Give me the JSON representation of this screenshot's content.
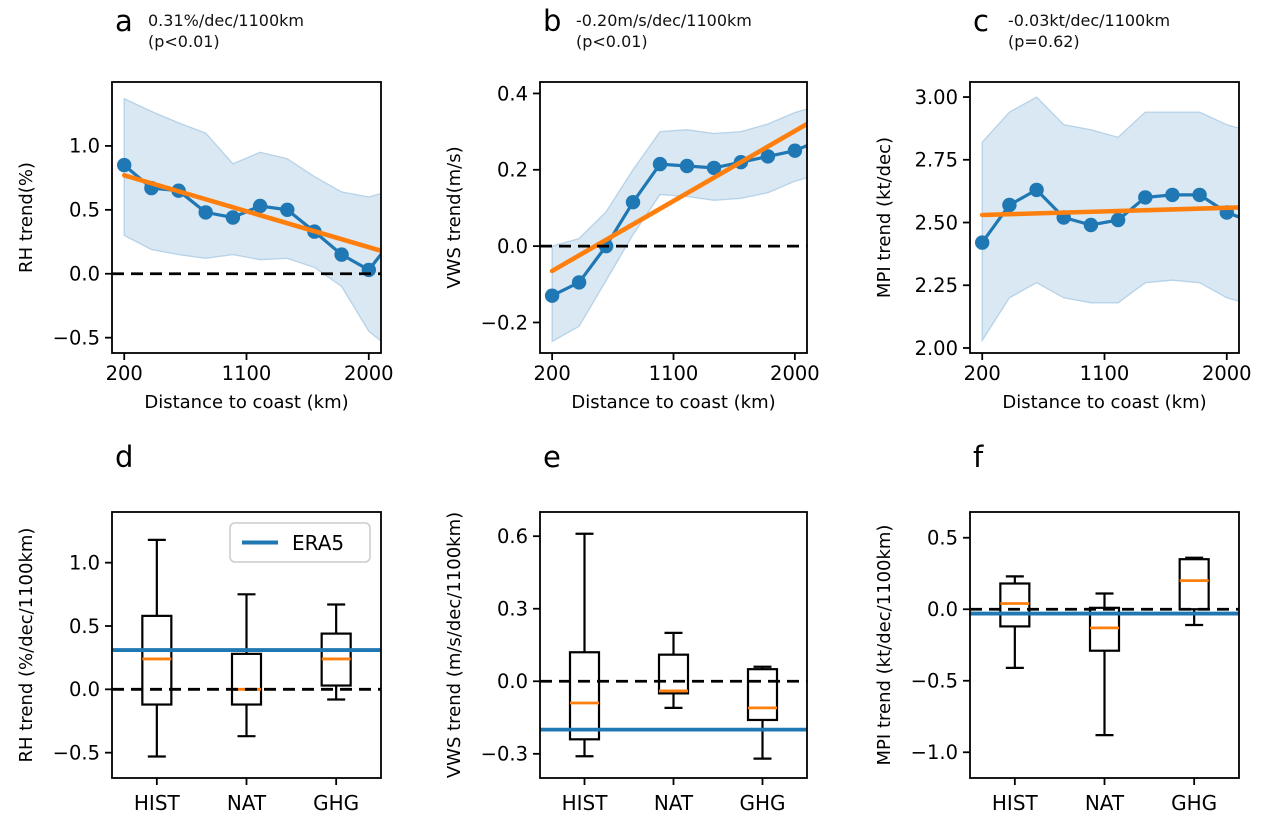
{
  "colors": {
    "data_blue": "#1f77b4",
    "trend_orange": "#ff7f0e",
    "band_blue": "#1f77b4",
    "band_opacity": 0.17,
    "band_edge": "#8cb8dc",
    "zero_line_black": "#000000",
    "era5_blue": "#1f77b4",
    "median_orange": "#ff7f0e",
    "box_black": "#000000",
    "legend_border": "#cccccc"
  },
  "chart_data": [
    {
      "panel": "a",
      "type": "line",
      "title": "0.31%/dec/1100km",
      "subtitle": "(p<0.01)",
      "xlabel": "Distance to coast (km)",
      "ylabel": "RH trend(%)",
      "x": [
        200,
        400,
        600,
        800,
        1000,
        1200,
        1400,
        1600,
        1800,
        2000,
        2200
      ],
      "values": [
        0.85,
        0.67,
        0.65,
        0.48,
        0.44,
        0.53,
        0.5,
        0.33,
        0.15,
        0.03,
        0.3
      ],
      "band_upper": [
        1.37,
        1.27,
        1.18,
        1.1,
        0.86,
        0.95,
        0.9,
        0.76,
        0.64,
        0.6,
        0.66
      ],
      "band_lower": [
        0.3,
        0.19,
        0.15,
        0.12,
        0.15,
        0.11,
        0.12,
        0.05,
        -0.1,
        -0.45,
        -0.62
      ],
      "trend_line": {
        "x": [
          200,
          2090
        ],
        "y": [
          0.77,
          0.18
        ]
      },
      "zero_dashed_line": 0.0,
      "xlim": [
        110,
        2090
      ],
      "ylim": [
        -0.62,
        1.5
      ],
      "xticks": [
        200,
        1100,
        2000
      ],
      "yticks": [
        -0.5,
        0.0,
        0.5,
        1.0
      ],
      "ytick_decimals": 1,
      "grid": false
    },
    {
      "panel": "b",
      "type": "line",
      "title": "-0.20m/s/dec/1100km",
      "subtitle": "(p<0.01)",
      "xlabel": "Distance to coast (km)",
      "ylabel": "VWS trend(m/s)",
      "x": [
        200,
        400,
        600,
        800,
        1000,
        1200,
        1400,
        1600,
        1800,
        2000,
        2200
      ],
      "values": [
        -0.13,
        -0.095,
        0.0,
        0.115,
        0.215,
        0.21,
        0.205,
        0.22,
        0.235,
        0.25,
        0.28
      ],
      "band_upper": [
        0.0,
        0.02,
        0.09,
        0.2,
        0.3,
        0.305,
        0.295,
        0.3,
        0.32,
        0.35,
        0.37
      ],
      "band_lower": [
        -0.25,
        -0.21,
        -0.09,
        0.03,
        0.135,
        0.13,
        0.12,
        0.125,
        0.14,
        0.17,
        0.19
      ],
      "trend_line": {
        "x": [
          200,
          2090
        ],
        "y": [
          -0.065,
          0.32
        ]
      },
      "zero_dashed_line": 0.0,
      "xlim": [
        110,
        2090
      ],
      "ylim": [
        -0.28,
        0.43
      ],
      "xticks": [
        200,
        1100,
        2000
      ],
      "yticks": [
        -0.2,
        0.0,
        0.2,
        0.4
      ],
      "ytick_decimals": 1,
      "grid": false
    },
    {
      "panel": "c",
      "type": "line",
      "title": "-0.03kt/dec/1100km",
      "subtitle": "(p=0.62)",
      "xlabel": "Distance to coast (km)",
      "ylabel": "MPI trend (kt/dec)",
      "x": [
        200,
        400,
        600,
        800,
        1000,
        1200,
        1400,
        1600,
        1800,
        2000,
        2200
      ],
      "values": [
        2.42,
        2.57,
        2.63,
        2.52,
        2.49,
        2.51,
        2.6,
        2.61,
        2.61,
        2.54,
        2.5
      ],
      "band_upper": [
        2.82,
        2.94,
        3.0,
        2.89,
        2.87,
        2.84,
        2.94,
        2.94,
        2.94,
        2.89,
        2.86
      ],
      "band_lower": [
        2.03,
        2.2,
        2.26,
        2.2,
        2.18,
        2.18,
        2.26,
        2.27,
        2.26,
        2.2,
        2.17
      ],
      "trend_line": {
        "x": [
          200,
          2090
        ],
        "y": [
          2.53,
          2.56
        ]
      },
      "zero_dashed_line": null,
      "xlim": [
        110,
        2090
      ],
      "ylim": [
        1.98,
        3.06
      ],
      "xticks": [
        200,
        1100,
        2000
      ],
      "yticks": [
        2.0,
        2.25,
        2.5,
        2.75,
        3.0
      ],
      "ytick_decimals": 2,
      "grid": false
    },
    {
      "panel": "d",
      "type": "box",
      "ylabel": "RH trend (%/dec/1100km)",
      "categories": [
        "HIST",
        "NAT",
        "GHG"
      ],
      "boxes": [
        {
          "label": "HIST",
          "whislo": -0.53,
          "q1": -0.12,
          "median": 0.24,
          "q3": 0.58,
          "whishi": 1.18
        },
        {
          "label": "NAT",
          "whislo": -0.37,
          "q1": -0.12,
          "median": 0.0,
          "q3": 0.28,
          "whishi": 0.75
        },
        {
          "label": "GHG",
          "whislo": -0.08,
          "q1": 0.03,
          "median": 0.24,
          "q3": 0.44,
          "whishi": 0.67
        }
      ],
      "era5_line": 0.31,
      "zero_dashed_line": 0.0,
      "ylim": [
        -0.7,
        1.4
      ],
      "yticks": [
        -0.5,
        0.0,
        0.5,
        1.0
      ],
      "ytick_decimals": 1,
      "legend": {
        "label": "ERA5"
      }
    },
    {
      "panel": "e",
      "type": "box",
      "ylabel": "VWS trend (m/s/dec/1100km)",
      "categories": [
        "HIST",
        "NAT",
        "GHG"
      ],
      "boxes": [
        {
          "label": "HIST",
          "whislo": -0.31,
          "q1": -0.24,
          "median": -0.09,
          "q3": 0.12,
          "whishi": 0.61
        },
        {
          "label": "NAT",
          "whislo": -0.11,
          "q1": -0.05,
          "median": -0.04,
          "q3": 0.11,
          "whishi": 0.2
        },
        {
          "label": "GHG",
          "whislo": -0.32,
          "q1": -0.16,
          "median": -0.11,
          "q3": 0.05,
          "whishi": 0.06
        }
      ],
      "era5_line": -0.2,
      "zero_dashed_line": 0.0,
      "ylim": [
        -0.4,
        0.7
      ],
      "yticks": [
        -0.3,
        0.0,
        0.3,
        0.6
      ],
      "ytick_decimals": 1,
      "legend": null
    },
    {
      "panel": "f",
      "type": "box",
      "ylabel": "MPI trend (kt/dec/1100km)",
      "categories": [
        "HIST",
        "NAT",
        "GHG"
      ],
      "boxes": [
        {
          "label": "HIST",
          "whislo": -0.41,
          "q1": -0.12,
          "median": 0.04,
          "q3": 0.18,
          "whishi": 0.23
        },
        {
          "label": "NAT",
          "whislo": -0.88,
          "q1": -0.29,
          "median": -0.13,
          "q3": 0.01,
          "whishi": 0.11
        },
        {
          "label": "GHG",
          "whislo": -0.11,
          "q1": 0.0,
          "median": 0.2,
          "q3": 0.35,
          "whishi": 0.36
        }
      ],
      "era5_line": -0.03,
      "zero_dashed_line": 0.0,
      "ylim": [
        -1.18,
        0.68
      ],
      "yticks": [
        -1.0,
        -0.5,
        0.0,
        0.5
      ],
      "ytick_decimals": 1,
      "legend": null
    }
  ]
}
